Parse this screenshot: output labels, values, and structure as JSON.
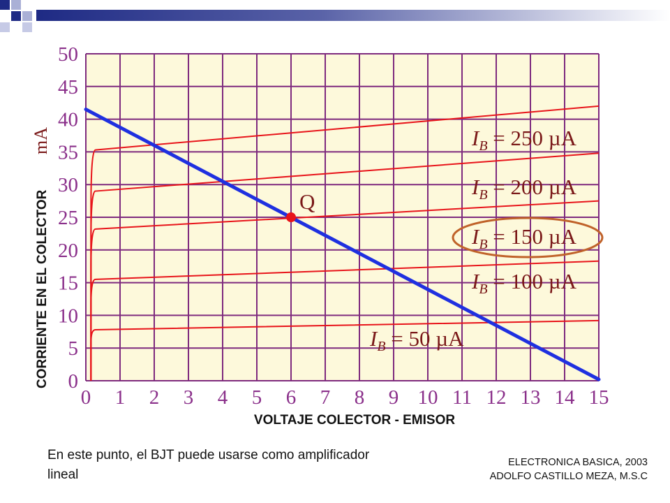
{
  "slide": {
    "note": "En este punto, el BJT puede usarse como amplificador lineal",
    "credit_line1": "ELECTRONICA BASICA, 2003",
    "credit_line2": "ADOLFO CASTILLO MEZA, M.S.C"
  },
  "chart_data": {
    "type": "line",
    "title": "",
    "xlabel": "VOLTAJE COLECTOR - EMISOR",
    "ylabel": "CORRIENTE EN EL COLECTOR",
    "ylabel_unit": "mA",
    "xlim": [
      0,
      15
    ],
    "ylim": [
      0,
      50
    ],
    "x_ticks": [
      0,
      1,
      2,
      3,
      4,
      5,
      6,
      7,
      8,
      9,
      10,
      11,
      12,
      13,
      14,
      15
    ],
    "y_ticks": [
      0,
      5,
      10,
      15,
      20,
      25,
      30,
      35,
      40,
      45,
      50
    ],
    "grid": true,
    "series": [
      {
        "name": "IB = 50 µA",
        "ib": "50",
        "color": "#e8141a",
        "knee_x": 0.2,
        "x": [
          0.2,
          15
        ],
        "y": [
          7.8,
          9.2
        ]
      },
      {
        "name": "IB = 100 µA",
        "ib": "100",
        "color": "#e8141a",
        "knee_x": 0.2,
        "x": [
          0.2,
          15
        ],
        "y": [
          15.5,
          18.3
        ]
      },
      {
        "name": "IB = 150 µA",
        "ib": "150",
        "color": "#e8141a",
        "knee_x": 0.2,
        "x": [
          0.2,
          15
        ],
        "y": [
          23.2,
          27.5
        ]
      },
      {
        "name": "IB = 200 µA",
        "ib": "200",
        "color": "#e8141a",
        "knee_x": 0.2,
        "x": [
          0.2,
          15
        ],
        "y": [
          29.0,
          34.8
        ]
      },
      {
        "name": "IB = 250 µA",
        "ib": "250",
        "color": "#e8141a",
        "knee_x": 0.2,
        "x": [
          0.2,
          15
        ],
        "y": [
          35.3,
          42.0
        ]
      }
    ],
    "load_line": {
      "color": "#1f30e0",
      "x": [
        0,
        15
      ],
      "y": [
        41.5,
        0.2
      ]
    },
    "q_point": {
      "label": "Q",
      "x": 6.0,
      "y": 25.0,
      "color": "#e8141a"
    },
    "highlighted_series": "IB = 150 µA",
    "label_prefix": "I",
    "label_subscript": "B",
    "label_unit": "µA",
    "colors": {
      "background": "#fdf9db",
      "grid": "#7e2a7e",
      "highlight": "#c0622a"
    }
  }
}
